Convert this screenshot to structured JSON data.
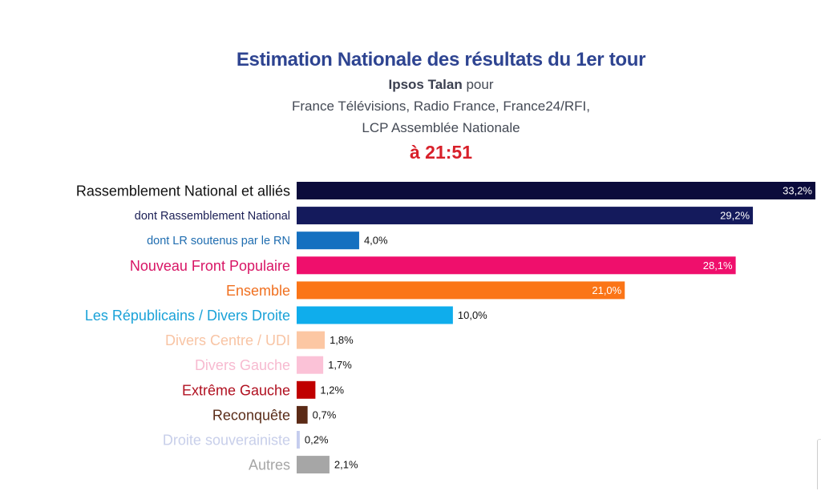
{
  "header": {
    "title": "Estimation Nationale des résultats du 1er tour",
    "pollster": "Ipsos Talan",
    "pour": " pour",
    "clients_line1": "France Télévisions, Radio France, France24/RFI,",
    "clients_line2": "LCP Assemblée Nationale",
    "time": "à 21:51"
  },
  "chart_data": {
    "type": "bar",
    "orientation": "horizontal",
    "title": "Estimation Nationale des résultats du 1er tour",
    "xlabel": "",
    "ylabel": "",
    "xlim": [
      0,
      33.2
    ],
    "grid": false,
    "legend": "none",
    "categories": [
      "Rassemblement National et alliés",
      "dont Rassemblement National",
      "dont LR soutenus par le RN",
      "Nouveau Front Populaire",
      "Ensemble",
      "Les Républicains / Divers Droite",
      "Divers Centre / UDI",
      "Divers Gauche",
      "Extrême Gauche",
      "Reconquête",
      "Droite souverainiste",
      "Autres"
    ],
    "values": [
      33.2,
      29.2,
      4.0,
      28.1,
      21.0,
      10.0,
      1.8,
      1.7,
      1.2,
      0.7,
      0.2,
      2.1
    ],
    "value_labels": [
      "33,2%",
      "29,2%",
      "4,0%",
      "28,1%",
      "21,0%",
      "10,0%",
      "1,8%",
      "1,7%",
      "1,2%",
      "0,7%",
      "0,2%",
      "2,1%"
    ],
    "bar_colors": [
      "#0b0b3b",
      "#141a5c",
      "#1570c0",
      "#ef0f6c",
      "#fb7517",
      "#0fadec",
      "#fcc7a3",
      "#fbc2d7",
      "#c00000",
      "#5b2a16",
      "#c5cdee",
      "#a6a6a6"
    ],
    "label_colors": [
      "#111111",
      "#1b1f55",
      "#1f6db0",
      "#d81565",
      "#f07020",
      "#1aa2d8",
      "#f8c4a4",
      "#f7bad0",
      "#b01020",
      "#5a2c18",
      "#c8cfea",
      "#a6a6a6"
    ],
    "label_emphasis": [
      "large",
      "small",
      "small",
      "large",
      "large",
      "large",
      "large",
      "large",
      "large",
      "large",
      "large",
      "large"
    ],
    "value_label_inside": [
      true,
      true,
      false,
      true,
      true,
      false,
      false,
      false,
      false,
      false,
      false,
      false
    ]
  }
}
